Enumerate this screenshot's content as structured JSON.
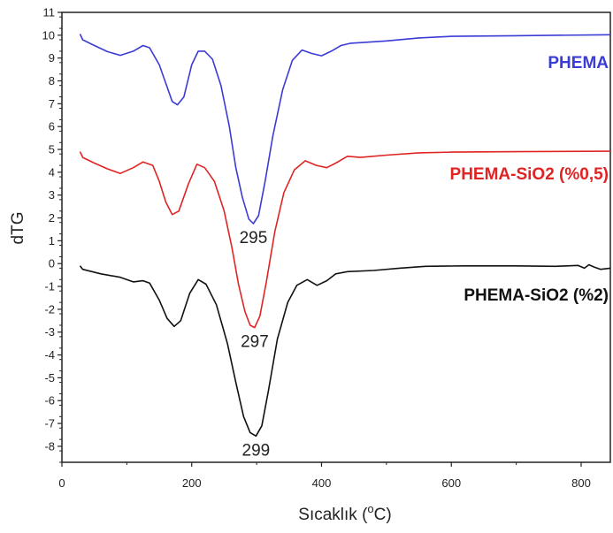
{
  "chart_data": {
    "type": "line",
    "title": "",
    "xlabel": "Sıcaklık (°C)",
    "xlabel_parts": {
      "main": "Sıcaklık (",
      "sup": "o",
      "end": "C)"
    },
    "ylabel": "dTG",
    "xlim": [
      0,
      845
    ],
    "ylim": [
      -8.7,
      11
    ],
    "x_ticks": [
      0,
      200,
      400,
      600,
      800
    ],
    "y_ticks": [
      -8,
      -7,
      -6,
      -5,
      -4,
      -3,
      -2,
      -1,
      0,
      1,
      2,
      3,
      4,
      5,
      6,
      7,
      8,
      9,
      10,
      11
    ],
    "grid": false,
    "legend": "inline-right",
    "series": [
      {
        "name": "PHEMA",
        "color": "#3b3bd6",
        "points": [
          [
            28,
            10.05
          ],
          [
            32,
            9.8
          ],
          [
            50,
            9.55
          ],
          [
            70,
            9.28
          ],
          [
            90,
            9.12
          ],
          [
            110,
            9.3
          ],
          [
            125,
            9.55
          ],
          [
            135,
            9.45
          ],
          [
            150,
            8.7
          ],
          [
            160,
            7.9
          ],
          [
            170,
            7.1
          ],
          [
            178,
            6.95
          ],
          [
            188,
            7.3
          ],
          [
            200,
            8.7
          ],
          [
            210,
            9.3
          ],
          [
            220,
            9.3
          ],
          [
            232,
            8.95
          ],
          [
            245,
            7.8
          ],
          [
            258,
            6.0
          ],
          [
            268,
            4.2
          ],
          [
            278,
            2.9
          ],
          [
            288,
            1.95
          ],
          [
            295,
            1.75
          ],
          [
            303,
            2.1
          ],
          [
            313,
            3.6
          ],
          [
            325,
            5.6
          ],
          [
            340,
            7.6
          ],
          [
            355,
            8.9
          ],
          [
            370,
            9.35
          ],
          [
            385,
            9.2
          ],
          [
            400,
            9.1
          ],
          [
            415,
            9.3
          ],
          [
            430,
            9.55
          ],
          [
            445,
            9.65
          ],
          [
            500,
            9.75
          ],
          [
            550,
            9.88
          ],
          [
            600,
            9.95
          ],
          [
            700,
            9.98
          ],
          [
            845,
            10.02
          ]
        ]
      },
      {
        "name": "PHEMA-SiO2 (%0,5)",
        "color": "#e02424",
        "points": [
          [
            28,
            4.9
          ],
          [
            32,
            4.65
          ],
          [
            50,
            4.4
          ],
          [
            70,
            4.15
          ],
          [
            90,
            3.95
          ],
          [
            110,
            4.2
          ],
          [
            125,
            4.45
          ],
          [
            140,
            4.3
          ],
          [
            150,
            3.6
          ],
          [
            160,
            2.7
          ],
          [
            170,
            2.15
          ],
          [
            180,
            2.3
          ],
          [
            195,
            3.5
          ],
          [
            208,
            4.35
          ],
          [
            220,
            4.2
          ],
          [
            235,
            3.6
          ],
          [
            250,
            2.3
          ],
          [
            262,
            0.7
          ],
          [
            272,
            -0.9
          ],
          [
            282,
            -2.1
          ],
          [
            290,
            -2.7
          ],
          [
            297,
            -2.8
          ],
          [
            305,
            -2.3
          ],
          [
            315,
            -0.8
          ],
          [
            328,
            1.4
          ],
          [
            342,
            3.1
          ],
          [
            358,
            4.1
          ],
          [
            375,
            4.5
          ],
          [
            392,
            4.3
          ],
          [
            408,
            4.2
          ],
          [
            422,
            4.4
          ],
          [
            440,
            4.7
          ],
          [
            460,
            4.65
          ],
          [
            500,
            4.75
          ],
          [
            550,
            4.85
          ],
          [
            600,
            4.88
          ],
          [
            700,
            4.9
          ],
          [
            845,
            4.92
          ]
        ]
      },
      {
        "name": "PHEMA-SiO2 (%2)",
        "color": "#111111",
        "points": [
          [
            28,
            -0.1
          ],
          [
            32,
            -0.25
          ],
          [
            60,
            -0.45
          ],
          [
            90,
            -0.6
          ],
          [
            110,
            -0.8
          ],
          [
            125,
            -0.75
          ],
          [
            135,
            -0.85
          ],
          [
            150,
            -1.6
          ],
          [
            162,
            -2.4
          ],
          [
            173,
            -2.75
          ],
          [
            183,
            -2.5
          ],
          [
            197,
            -1.3
          ],
          [
            210,
            -0.7
          ],
          [
            222,
            -0.9
          ],
          [
            238,
            -1.8
          ],
          [
            255,
            -3.5
          ],
          [
            268,
            -5.2
          ],
          [
            280,
            -6.7
          ],
          [
            290,
            -7.4
          ],
          [
            299,
            -7.55
          ],
          [
            308,
            -7.1
          ],
          [
            318,
            -5.6
          ],
          [
            332,
            -3.3
          ],
          [
            348,
            -1.7
          ],
          [
            362,
            -0.95
          ],
          [
            378,
            -0.7
          ],
          [
            393,
            -0.95
          ],
          [
            408,
            -0.75
          ],
          [
            422,
            -0.45
          ],
          [
            440,
            -0.35
          ],
          [
            480,
            -0.3
          ],
          [
            520,
            -0.2
          ],
          [
            560,
            -0.12
          ],
          [
            620,
            -0.1
          ],
          [
            700,
            -0.1
          ],
          [
            760,
            -0.12
          ],
          [
            795,
            -0.08
          ],
          [
            805,
            -0.2
          ],
          [
            812,
            -0.05
          ],
          [
            820,
            -0.15
          ],
          [
            830,
            -0.25
          ],
          [
            845,
            -0.2
          ]
        ]
      }
    ],
    "annotations": [
      {
        "text": "295",
        "x": 295,
        "y": 1.75
      },
      {
        "text": "297",
        "x": 297,
        "y": -2.8
      },
      {
        "text": "299",
        "x": 299,
        "y": -7.55
      }
    ]
  }
}
